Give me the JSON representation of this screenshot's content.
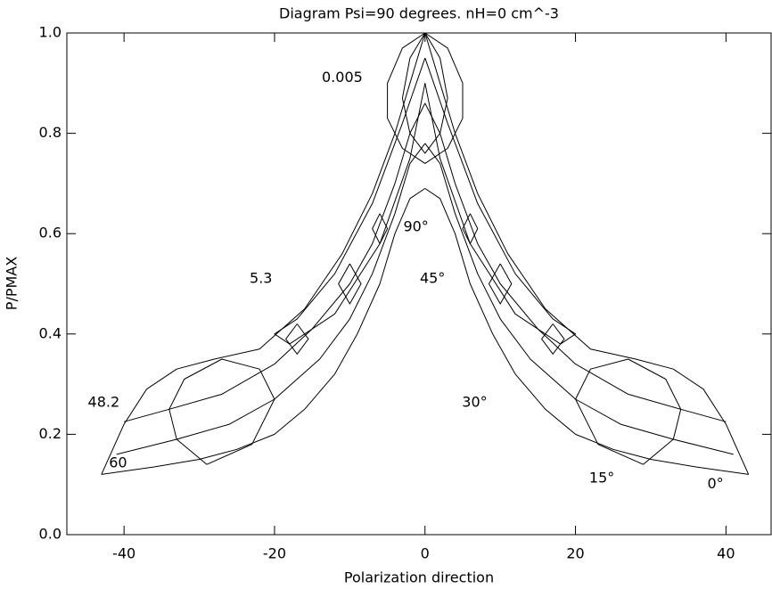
{
  "chart_data": {
    "type": "line",
    "title": "Diagram Psi=90 degrees. nH=0 cm^-3",
    "x_label": "Polarization direction",
    "y_label": "P/PMAX",
    "xlim": [
      -47.6,
      46
    ],
    "ylim": [
      0,
      1
    ],
    "xticks": [
      -40,
      -20,
      0,
      20,
      40
    ],
    "yticks": [
      {
        "value": 0,
        "label": "0.0"
      },
      0.2,
      0.4,
      0.6,
      0.8,
      {
        "value": 1,
        "label": "1.0"
      }
    ],
    "color": "#000000",
    "series": [
      {
        "x": [
          0,
          2,
          4,
          6,
          9,
          12,
          16,
          20,
          25,
          30,
          36,
          43
        ],
        "values": [
          0.69,
          0.67,
          0.6,
          0.5,
          0.4,
          0.32,
          0.25,
          0.2,
          0.17,
          0.15,
          0.135,
          0.12
        ]
      },
      {
        "x": [
          0,
          -2,
          -4,
          -6,
          -9,
          -12,
          -16,
          -20,
          -25,
          -30,
          -36,
          -43
        ],
        "values": [
          0.69,
          0.67,
          0.6,
          0.5,
          0.4,
          0.32,
          0.25,
          0.2,
          0.17,
          0.15,
          0.135,
          0.12
        ]
      },
      {
        "x": [
          0,
          2,
          4,
          7,
          10,
          14,
          20,
          26,
          33,
          41
        ],
        "values": [
          0.78,
          0.74,
          0.64,
          0.52,
          0.43,
          0.35,
          0.27,
          0.22,
          0.19,
          0.16
        ]
      },
      {
        "x": [
          0,
          -2,
          -4,
          -7,
          -10,
          -14,
          -20,
          -26,
          -33,
          -41
        ],
        "values": [
          0.78,
          0.74,
          0.64,
          0.52,
          0.43,
          0.35,
          0.27,
          0.22,
          0.19,
          0.16
        ]
      },
      {
        "x": [
          0,
          2,
          4,
          7,
          10,
          15,
          20,
          27,
          34,
          40
        ],
        "values": [
          0.86,
          0.8,
          0.7,
          0.58,
          0.5,
          0.41,
          0.34,
          0.28,
          0.25,
          0.225
        ]
      },
      {
        "x": [
          0,
          -2,
          -4,
          -7,
          -10,
          -15,
          -20,
          -27,
          -34,
          -40
        ],
        "values": [
          0.86,
          0.8,
          0.7,
          0.58,
          0.5,
          0.41,
          0.34,
          0.28,
          0.25,
          0.225
        ]
      },
      {
        "x": [
          43,
          40,
          37,
          33,
          28,
          22,
          16,
          11,
          7,
          4,
          2,
          0
        ],
        "values": [
          0.12,
          0.22,
          0.29,
          0.33,
          0.35,
          0.37,
          0.45,
          0.56,
          0.68,
          0.8,
          0.9,
          1.0
        ]
      },
      {
        "x": [
          -43,
          -40,
          -37,
          -33,
          -28,
          -22,
          -16,
          -11,
          -7,
          -4,
          -2,
          0
        ],
        "values": [
          0.12,
          0.22,
          0.29,
          0.33,
          0.35,
          0.37,
          0.45,
          0.56,
          0.68,
          0.8,
          0.9,
          1.0
        ]
      },
      {
        "x": [
          29,
          33,
          34,
          32,
          27,
          22,
          20,
          23,
          29
        ],
        "values": [
          0.14,
          0.19,
          0.25,
          0.31,
          0.35,
          0.33,
          0.27,
          0.18,
          0.14
        ]
      },
      {
        "x": [
          -29,
          -33,
          -34,
          -32,
          -27,
          -22,
          -20,
          -23,
          -29
        ],
        "values": [
          0.14,
          0.19,
          0.25,
          0.31,
          0.35,
          0.33,
          0.27,
          0.18,
          0.14
        ]
      },
      {
        "x": [
          0,
          -3,
          -5,
          -5,
          -3,
          0,
          3,
          5,
          5,
          3,
          0
        ],
        "values": [
          1.0,
          0.97,
          0.9,
          0.83,
          0.77,
          0.74,
          0.77,
          0.83,
          0.9,
          0.97,
          1.0
        ]
      },
      {
        "x": [
          0,
          -2,
          -3,
          -2,
          0,
          2,
          3,
          2,
          0
        ],
        "values": [
          1.0,
          0.95,
          0.87,
          0.8,
          0.76,
          0.8,
          0.87,
          0.95,
          1.0
        ]
      },
      {
        "x": [
          0,
          3,
          7,
          12,
          17,
          20,
          18,
          12,
          6,
          2,
          0
        ],
        "values": [
          0.95,
          0.82,
          0.66,
          0.52,
          0.43,
          0.4,
          0.38,
          0.44,
          0.58,
          0.75,
          0.9
        ]
      },
      {
        "x": [
          0,
          -3,
          -7,
          -12,
          -17,
          -20,
          -18,
          -12,
          -6,
          -2,
          0
        ],
        "values": [
          0.95,
          0.82,
          0.66,
          0.52,
          0.43,
          0.4,
          0.38,
          0.44,
          0.58,
          0.75,
          0.9
        ]
      },
      {
        "x": [
          6,
          7,
          6,
          5,
          6
        ],
        "values": [
          0.64,
          0.61,
          0.58,
          0.61,
          0.64
        ]
      },
      {
        "x": [
          -6,
          -7,
          -6,
          -5,
          -6
        ],
        "values": [
          0.64,
          0.61,
          0.58,
          0.61,
          0.64
        ]
      },
      {
        "x": [
          10,
          11.5,
          10,
          8.5,
          10
        ],
        "values": [
          0.54,
          0.5,
          0.46,
          0.5,
          0.54
        ]
      },
      {
        "x": [
          -10,
          -11.5,
          -10,
          -8.5,
          -10
        ],
        "values": [
          0.54,
          0.5,
          0.46,
          0.5,
          0.54
        ]
      },
      {
        "x": [
          17,
          18.5,
          17,
          15.5,
          17
        ],
        "values": [
          0.42,
          0.39,
          0.36,
          0.39,
          0.42
        ]
      },
      {
        "x": [
          -17,
          -18.5,
          -17,
          -15.5,
          -17
        ],
        "values": [
          0.42,
          0.39,
          0.36,
          0.39,
          0.42
        ]
      }
    ],
    "annotations": [
      {
        "text": "0.005",
        "x": -11,
        "y": 0.91
      },
      {
        "text": "90°",
        "x": -1.2,
        "y": 0.613
      },
      {
        "text": "45°",
        "x": 1,
        "y": 0.51
      },
      {
        "text": "5.3",
        "x": -21.8,
        "y": 0.51
      },
      {
        "text": "30°",
        "x": 6.6,
        "y": 0.263
      },
      {
        "text": "48.2",
        "x": -42.7,
        "y": 0.263
      },
      {
        "text": "60",
        "x": -40.8,
        "y": 0.142
      },
      {
        "text": "15°",
        "x": 23.5,
        "y": 0.112
      },
      {
        "text": "0°",
        "x": 38.6,
        "y": 0.1
      }
    ]
  }
}
